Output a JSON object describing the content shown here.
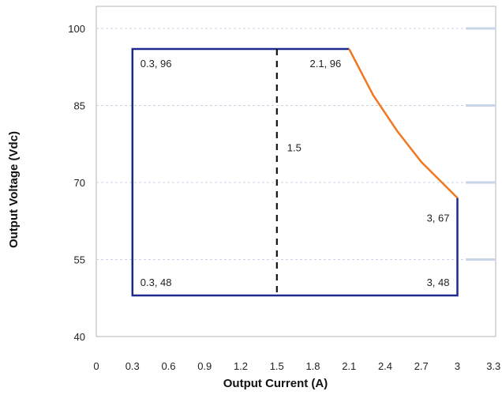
{
  "chart_data": {
    "type": "line",
    "xlabel": "Output Current (A)",
    "ylabel": "Output Voltage (Vdc)",
    "xlim": [
      0,
      3.3
    ],
    "ylim": [
      40,
      100
    ],
    "x_ticks": [
      "0",
      "0.3",
      "0.6",
      "0.9",
      "1.2",
      "1.5",
      "1.8",
      "2.1",
      "2.4",
      "2.7",
      "3",
      "3.3"
    ],
    "y_ticks": [
      "40",
      "55",
      "70",
      "85",
      "100"
    ],
    "grid": "horizontal dashed",
    "series": [
      {
        "color": "#1c2a8c",
        "style": "solid",
        "points": [
          [
            2.1,
            96
          ],
          [
            0.3,
            96
          ],
          [
            0.3,
            48
          ],
          [
            3,
            48
          ],
          [
            3,
            67
          ]
        ]
      },
      {
        "color": "#f07820",
        "style": "solid",
        "points": [
          [
            2.1,
            96
          ],
          [
            2.3,
            87
          ],
          [
            2.5,
            80
          ],
          [
            2.7,
            74
          ],
          [
            3,
            67
          ]
        ]
      },
      {
        "color": "#111111",
        "style": "dashed",
        "points": [
          [
            1.5,
            96
          ],
          [
            1.5,
            48
          ]
        ]
      }
    ],
    "annotations": [
      {
        "text": "0.3, 96",
        "x": 0.3,
        "y": 96,
        "anchor": "start"
      },
      {
        "text": "2.1, 96",
        "x": 2.1,
        "y": 96,
        "anchor": "end"
      },
      {
        "text": "1.5",
        "x": 1.5,
        "y": 77,
        "anchor": "start"
      },
      {
        "text": "3, 67",
        "x": 3,
        "y": 67,
        "anchor": "end"
      },
      {
        "text": "0.3, 48",
        "x": 0.3,
        "y": 48,
        "anchor": "start"
      },
      {
        "text": "3, 48",
        "x": 3,
        "y": 48,
        "anchor": "end"
      }
    ]
  }
}
